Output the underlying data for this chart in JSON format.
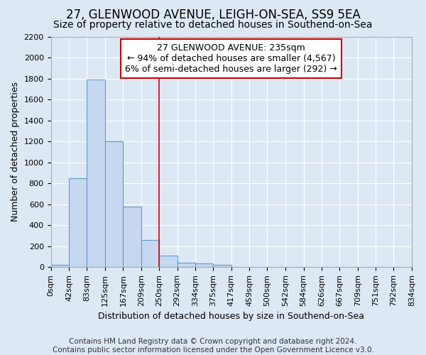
{
  "title1": "27, GLENWOOD AVENUE, LEIGH-ON-SEA, SS9 5EA",
  "title2": "Size of property relative to detached houses in Southend-on-Sea",
  "xlabel": "Distribution of detached houses by size in Southend-on-Sea",
  "ylabel": "Number of detached properties",
  "annotation_line1": "27 GLENWOOD AVENUE: 235sqm",
  "annotation_line2": "← 94% of detached houses are smaller (4,567)",
  "annotation_line3": "6% of semi-detached houses are larger (292) →",
  "footnote1": "Contains HM Land Registry data © Crown copyright and database right 2024.",
  "footnote2": "Contains public sector information licensed under the Open Government Licence v3.0.",
  "bin_edges": [
    0,
    42,
    83,
    125,
    167,
    209,
    250,
    292,
    334,
    375,
    417,
    459,
    500,
    542,
    584,
    626,
    667,
    709,
    751,
    792,
    834
  ],
  "bar_heights": [
    25,
    850,
    1790,
    1200,
    575,
    260,
    110,
    45,
    35,
    25,
    0,
    0,
    0,
    0,
    0,
    0,
    0,
    0,
    0,
    0
  ],
  "bar_color": "#c5d8f0",
  "bar_edge_color": "#6699cc",
  "red_line_x": 250,
  "ylim": [
    0,
    2200
  ],
  "yticks": [
    0,
    200,
    400,
    600,
    800,
    1000,
    1200,
    1400,
    1600,
    1800,
    2000,
    2200
  ],
  "background_color": "#dde8f5",
  "grid_color": "#ffffff",
  "annotation_box_color": "#ffffff",
  "annotation_box_edge": "#cc0000",
  "red_line_color": "#cc0000",
  "title1_fontsize": 12,
  "title2_fontsize": 10,
  "tick_fontsize": 8,
  "ylabel_fontsize": 9,
  "xlabel_fontsize": 9,
  "annotation_fontsize": 9,
  "footnote_fontsize": 7.5
}
